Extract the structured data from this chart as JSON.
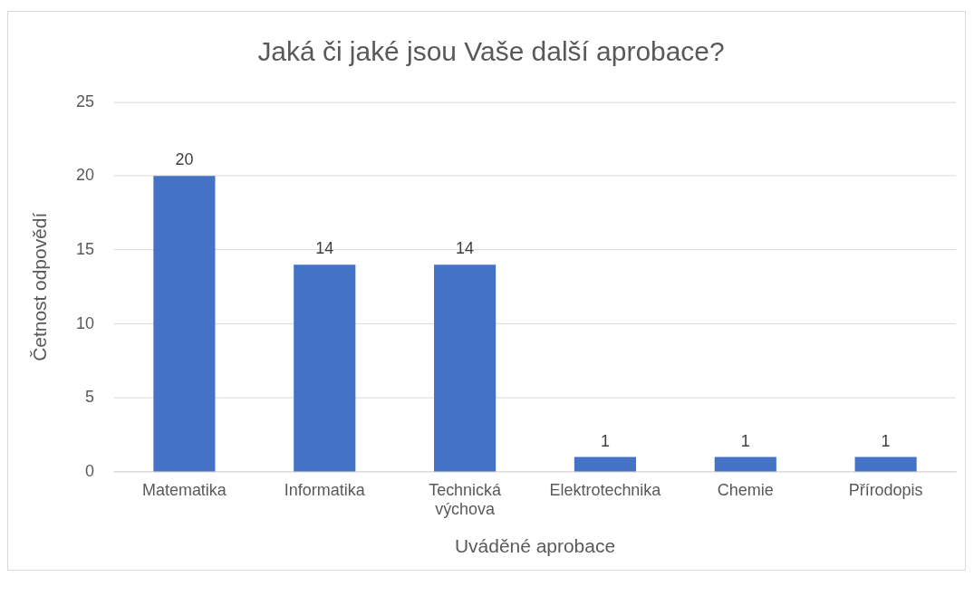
{
  "chart_data": {
    "type": "bar",
    "title": "Jaká či jaké jsou Vaše další aprobace?",
    "xlabel": "Uváděné aprobace",
    "ylabel": "Četnost odpovědí",
    "categories": [
      "Matematika",
      "Informatika",
      "Technická výchova",
      "Elektrotechnika",
      "Chemie",
      "Přírodopis"
    ],
    "values": [
      20,
      14,
      14,
      1,
      1,
      1
    ],
    "color": "#4472c4",
    "ylim": [
      0,
      25
    ],
    "yticks": [
      0,
      5,
      10,
      15,
      20,
      25
    ],
    "grid": "y",
    "legend": false,
    "data_labels": true
  }
}
